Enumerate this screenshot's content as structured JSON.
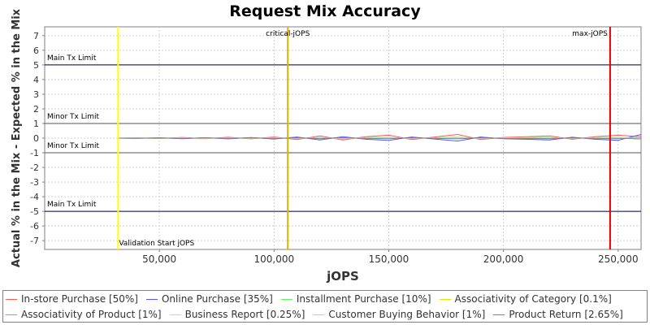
{
  "chart_data": {
    "type": "line",
    "title": "Request Mix Accuracy",
    "xlabel": "jOPS",
    "ylabel": "Actual % in the Mix - Expected % in the Mix",
    "xlim": [
      0,
      260000
    ],
    "ylim": [
      -7.6,
      7.6
    ],
    "x_ticks": [
      50000,
      100000,
      150000,
      200000,
      250000
    ],
    "x_tick_labels": [
      "50,000",
      "100,000",
      "150,000",
      "200,000",
      "250,000"
    ],
    "y_ticks": [
      -7,
      -6,
      -5,
      -4,
      -3,
      -2,
      -1,
      0,
      1,
      2,
      3,
      4,
      5,
      6,
      7
    ],
    "grid": true,
    "legend_position": "bottom",
    "reference_lines": [
      {
        "axis": "y",
        "value": 5,
        "label": "Main Tx Limit",
        "color": "#00004a"
      },
      {
        "axis": "y",
        "value": 1,
        "label": "Minor Tx Limit",
        "color": "#555555"
      },
      {
        "axis": "y",
        "value": -1,
        "label": "Minor Tx Limit",
        "color": "#555555"
      },
      {
        "axis": "y",
        "value": -5,
        "label": "Main Tx Limit",
        "color": "#00004a"
      }
    ],
    "markers": [
      {
        "axis": "x",
        "value": 32000,
        "label": "Validation Start jOPS",
        "color": "#ffff00"
      },
      {
        "axis": "x",
        "value": 106000,
        "label": "critical-jOPS",
        "color": "#e0b000"
      },
      {
        "axis": "x",
        "value": 246500,
        "label": "max-jOPS",
        "color": "#e00000"
      }
    ],
    "x": [
      32000,
      40000,
      50000,
      60000,
      70000,
      80000,
      90000,
      100000,
      110000,
      120000,
      130000,
      140000,
      150000,
      160000,
      170000,
      180000,
      190000,
      200000,
      210000,
      220000,
      230000,
      240000,
      250000,
      260000
    ],
    "series": [
      {
        "name": "In-store Purchase [50%]",
        "color": "#ff5555",
        "values": [
          0,
          0.02,
          -0.03,
          0.05,
          -0.04,
          0.06,
          -0.05,
          0.08,
          -0.1,
          0.15,
          -0.12,
          0.1,
          0.2,
          -0.1,
          0.08,
          0.25,
          -0.1,
          0.05,
          0.1,
          0.15,
          -0.08,
          0.1,
          0.2,
          0.1
        ]
      },
      {
        "name": "Online Purchase [35%]",
        "color": "#5555ff",
        "values": [
          0,
          -0.01,
          0.02,
          -0.04,
          0.03,
          -0.05,
          0.04,
          -0.06,
          0.08,
          -0.12,
          0.1,
          -0.08,
          -0.15,
          0.08,
          -0.06,
          -0.2,
          0.08,
          -0.04,
          -0.08,
          -0.12,
          0.06,
          -0.08,
          -0.15,
          0.25
        ]
      },
      {
        "name": "Installment Purchase [10%]",
        "color": "#55ff55",
        "values": [
          0,
          0.01,
          -0.02,
          0.02,
          -0.02,
          0.03,
          -0.03,
          0.03,
          -0.04,
          0.05,
          -0.05,
          0.04,
          0.05,
          -0.04,
          0.03,
          0.06,
          -0.04,
          0.02,
          0.04,
          0.05,
          -0.03,
          0.04,
          0.05,
          -0.1
        ]
      },
      {
        "name": "Associativity of Category [0.1%]",
        "color": "#e6e600",
        "values": [
          0,
          0,
          0,
          0,
          0,
          0,
          0,
          0,
          0,
          0,
          0,
          0,
          0,
          0,
          0,
          0,
          0,
          0,
          0,
          0,
          0,
          0,
          0,
          0
        ]
      },
      {
        "name": "Associativity of Product [1%]",
        "color": "#ff55ff",
        "values": [
          0,
          0,
          0.01,
          -0.01,
          0.01,
          -0.01,
          0.01,
          -0.01,
          0.01,
          -0.01,
          0.01,
          -0.01,
          0.01,
          -0.01,
          0.01,
          -0.01,
          0.01,
          -0.01,
          0.01,
          -0.01,
          0.01,
          -0.01,
          0.01,
          0
        ]
      },
      {
        "name": "Business Report [0.25%]",
        "color": "#55ffff",
        "values": [
          0,
          0,
          0,
          0,
          0,
          0,
          0,
          0,
          0,
          0,
          0,
          0,
          0,
          0,
          0,
          0,
          0,
          0,
          0,
          0,
          0,
          0,
          0,
          0
        ]
      },
      {
        "name": "Customer Buying Behavior [1%]",
        "color": "#ffafaf",
        "values": [
          0,
          0.01,
          -0.01,
          0.02,
          -0.02,
          0.02,
          -0.02,
          0.03,
          -0.03,
          0.04,
          -0.04,
          0.03,
          0.04,
          -0.03,
          0.02,
          0.05,
          -0.03,
          0.02,
          0.03,
          0.04,
          -0.02,
          0.03,
          0.04,
          0
        ]
      },
      {
        "name": "Product Return [2.65%]",
        "color": "#808080",
        "values": [
          0,
          -0.01,
          0.01,
          -0.02,
          0.02,
          -0.02,
          0.02,
          -0.03,
          0.03,
          -0.04,
          0.04,
          -0.03,
          -0.04,
          0.03,
          -0.02,
          -0.05,
          0.03,
          -0.02,
          -0.03,
          -0.04,
          0.02,
          -0.03,
          -0.04,
          0
        ]
      }
    ]
  }
}
